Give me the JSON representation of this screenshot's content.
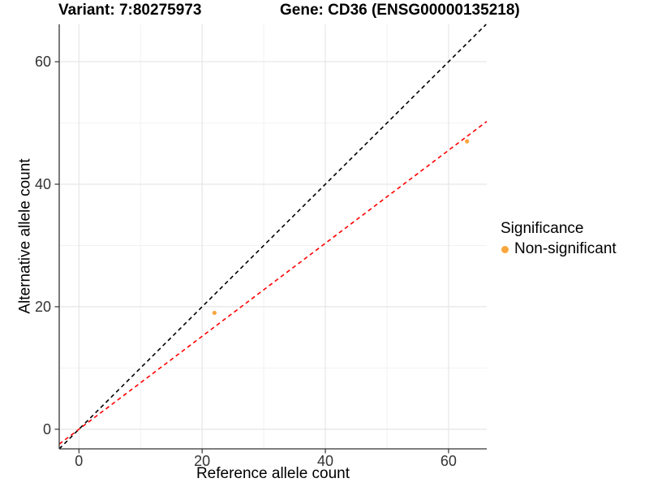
{
  "titles": {
    "left": "Variant: 7:80275973",
    "right": "Gene: CD36 (ENSG00000135218)"
  },
  "legend": {
    "title": "Significance",
    "items": [
      {
        "label": "Non-significant",
        "color": "#FAA63C"
      }
    ]
  },
  "colors": {
    "identity_line": "#000000",
    "fit_line": "#FF0000",
    "point": "#FAA63C",
    "grid_major": "#E6E6E6",
    "grid_minor": "#F2F2F2",
    "axis_line": "#333333",
    "tick_text": "#333333"
  },
  "chart_data": {
    "type": "scatter",
    "title": "Variant: 7:80275973   Gene: CD36 (ENSG00000135218)",
    "xlabel": "Reference allele count",
    "ylabel": "Alternative allele count",
    "xlim": [
      -3.2,
      66.2
    ],
    "ylim": [
      -3.2,
      66.1
    ],
    "x_ticks": [
      0,
      20,
      40,
      60
    ],
    "y_ticks": [
      0,
      20,
      40,
      60
    ],
    "x_minor_ticks": [
      10,
      30,
      50
    ],
    "y_minor_ticks": [
      10,
      30,
      50
    ],
    "grid": true,
    "legend_position": "right",
    "series": [
      {
        "name": "Non-significant",
        "color": "#FAA63C",
        "points": [
          {
            "x": 22,
            "y": 19
          },
          {
            "x": 63,
            "y": 47
          }
        ]
      }
    ],
    "lines": [
      {
        "name": "identity-line",
        "slope": 1,
        "intercept": 0,
        "color": "#000000",
        "dashed": true
      },
      {
        "name": "fit-line",
        "slope": 0.759,
        "intercept": 0,
        "color": "#FF0000",
        "dashed": true
      }
    ]
  }
}
